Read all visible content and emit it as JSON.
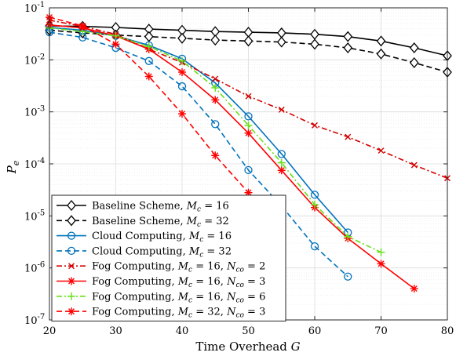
{
  "chart_data": {
    "type": "line",
    "xlabel_text": "Time Overhead ",
    "xlabel_var": "G",
    "ylabel_var": "P",
    "ylabel_sub": "e",
    "xlim": [
      20,
      80
    ],
    "ylim": [
      1e-07,
      0.1
    ],
    "yscale": "log",
    "grid": true,
    "legend_position": "bottom-left",
    "x_ticks": [
      "20",
      "30",
      "40",
      "50",
      "60",
      "70",
      "80"
    ],
    "y_ticks": [
      {
        "base": "10",
        "exp": "-7"
      },
      {
        "base": "10",
        "exp": "-6"
      },
      {
        "base": "10",
        "exp": "-5"
      },
      {
        "base": "10",
        "exp": "-4"
      },
      {
        "base": "10",
        "exp": "-3"
      },
      {
        "base": "10",
        "exp": "-2"
      },
      {
        "base": "10",
        "exp": "-1"
      }
    ],
    "series": [
      {
        "label": "Baseline Scheme, ",
        "math": "M",
        "sub": "c",
        "eq": " = 16",
        "extra": "",
        "color": "#000000",
        "dash": "solid",
        "marker": "diamond",
        "x": [
          20,
          25,
          30,
          35,
          40,
          45,
          50,
          55,
          60,
          65,
          70,
          75,
          80
        ],
        "y": [
          0.045,
          0.044,
          0.042,
          0.039,
          0.037,
          0.035,
          0.034,
          0.033,
          0.031,
          0.028,
          0.023,
          0.017,
          0.012
        ]
      },
      {
        "label": "Baseline Scheme, ",
        "math": "M",
        "sub": "c",
        "eq": " = 32",
        "extra": "",
        "color": "#000000",
        "dash": "dashed",
        "marker": "diamond",
        "x": [
          20,
          25,
          30,
          35,
          40,
          45,
          50,
          55,
          60,
          65,
          70,
          75,
          80
        ],
        "y": [
          0.037,
          0.033,
          0.03,
          0.028,
          0.026,
          0.024,
          0.023,
          0.022,
          0.02,
          0.017,
          0.013,
          0.0088,
          0.0058
        ]
      },
      {
        "label": "Cloud Computing, ",
        "math": "M",
        "sub": "c",
        "eq": " = 16",
        "extra": "",
        "color": "#0072BD",
        "dash": "solid",
        "marker": "circle",
        "x": [
          20,
          25,
          30,
          35,
          40,
          45,
          50,
          55,
          60,
          65
        ],
        "y": [
          0.042,
          0.037,
          0.029,
          0.019,
          0.0105,
          0.0036,
          0.00082,
          0.000155,
          2.55e-05,
          4.8e-06
        ]
      },
      {
        "label": "Cloud Computing, ",
        "math": "M",
        "sub": "c",
        "eq": " = 32",
        "extra": "",
        "color": "#0072BD",
        "dash": "dashed",
        "marker": "circle",
        "x": [
          20,
          25,
          30,
          35,
          40,
          45,
          50,
          55,
          60,
          65
        ],
        "y": [
          0.034,
          0.027,
          0.017,
          0.0095,
          0.0031,
          0.00058,
          7.6e-05,
          1.55e-05,
          2.6e-06,
          6.8e-07
        ]
      },
      {
        "label": "Fog Computing, ",
        "math": "M",
        "sub": "c",
        "eq": " = 16, ",
        "extra_math": "N",
        "extra_sub": "co",
        "extra_eq": " = 2",
        "color": "#D40000",
        "dash": "dashdot",
        "marker": "x",
        "x": [
          20,
          25,
          30,
          35,
          40,
          45,
          50,
          55,
          60,
          65,
          70,
          75,
          80
        ],
        "y": [
          0.058,
          0.044,
          0.031,
          0.016,
          0.0089,
          0.0043,
          0.002,
          0.0011,
          0.00055,
          0.00033,
          0.00018,
          9.5e-05,
          5.3e-05
        ]
      },
      {
        "label": "Fog Computing, ",
        "math": "M",
        "sub": "c",
        "eq": " = 16, ",
        "extra_math": "N",
        "extra_sub": "co",
        "extra_eq": " = 3",
        "color": "#FF0000",
        "dash": "solid",
        "marker": "asterisk",
        "x": [
          20,
          25,
          30,
          35,
          40,
          45,
          50,
          55,
          60,
          65,
          70,
          75
        ],
        "y": [
          0.047,
          0.041,
          0.029,
          0.016,
          0.0058,
          0.0017,
          0.00039,
          7.5e-05,
          1.45e-05,
          3.7e-06,
          1.2e-06,
          4e-07
        ]
      },
      {
        "label": "Fog Computing, ",
        "math": "M",
        "sub": "c",
        "eq": " = 16, ",
        "extra_math": "N",
        "extra_sub": "co",
        "extra_eq": " = 6",
        "color": "#66E01A",
        "dash": "dashdot",
        "marker": "plus",
        "x": [
          20,
          25,
          30,
          35,
          40,
          45,
          50,
          55,
          60,
          65,
          70
        ],
        "y": [
          0.041,
          0.035,
          0.029,
          0.018,
          0.0095,
          0.0029,
          0.00055,
          0.000105,
          1.65e-05,
          4e-06,
          2e-06
        ]
      },
      {
        "label": "Fog Computing, ",
        "math": "M",
        "sub": "c",
        "eq": " = 32, ",
        "extra_math": "N",
        "extra_sub": "co",
        "extra_eq": " = 3",
        "color": "#FF0000",
        "dash": "dashed",
        "marker": "asterisk",
        "x": [
          20,
          25,
          30,
          35,
          40,
          45,
          50
        ],
        "y": [
          0.066,
          0.045,
          0.02,
          0.0048,
          0.00092,
          0.000145,
          2.8e-05
        ]
      }
    ]
  }
}
